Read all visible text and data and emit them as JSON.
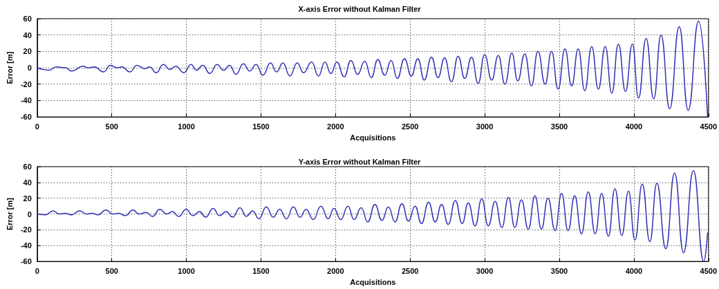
{
  "chart_data": [
    {
      "type": "line",
      "title": "X-axis Error without Kalman Filter",
      "xlabel": "Acquisitions",
      "ylabel": "Error [m]",
      "xlim": [
        0,
        4500
      ],
      "xticks": [
        0,
        500,
        1000,
        1500,
        2000,
        2500,
        3000,
        3500,
        4000,
        4500
      ],
      "ylim": [
        -60,
        60
      ],
      "yticks": [
        -60,
        -40,
        -20,
        0,
        20,
        40,
        60
      ],
      "grid": true,
      "marker": "none",
      "line_style": "solid",
      "series": [
        {
          "color": "#3232b4",
          "x": [
            0,
            77,
            130,
            192,
            230,
            310,
            338,
            384,
            445,
            491,
            537,
            568,
            622,
            668,
            722,
            753,
            799,
            845,
            891,
            929,
            983,
            1032,
            1067,
            1110,
            1157,
            1206,
            1249,
            1290,
            1333,
            1382,
            1425,
            1467,
            1513,
            1564,
            1605,
            1647,
            1694,
            1743,
            1785,
            1840,
            1886,
            1928,
            1969,
            2009,
            2058,
            2103,
            2148,
            2196,
            2240,
            2283,
            2330,
            2373,
            2414,
            2462,
            2508,
            2552,
            2595,
            2643,
            2687,
            2731,
            2777,
            2822,
            2866,
            2912,
            2956,
            2999,
            3047,
            3091,
            3136,
            3182,
            3221,
            3269,
            3313,
            3357,
            3405,
            3448,
            3492,
            3538,
            3583,
            3627,
            3671,
            3717,
            3762,
            3808,
            3852,
            3896,
            3944,
            3990,
            4031,
            4082,
            4133,
            4182,
            4240,
            4304,
            4364,
            4434,
            4494
          ],
          "values": [
            0,
            -3,
            1,
            0,
            -4,
            2,
            0,
            1,
            -5,
            3,
            0,
            1,
            -5,
            3,
            -1,
            1,
            -6,
            4,
            -2,
            2,
            -6,
            4,
            -3,
            3,
            -7,
            4,
            -3,
            3,
            -8,
            5,
            -4,
            4,
            -9,
            6,
            -5,
            6,
            -10,
            6,
            -6,
            7,
            -10,
            7,
            -7,
            7,
            -11,
            9,
            -8,
            8,
            -12,
            10,
            -9,
            9,
            -13,
            11,
            -10,
            11,
            -15,
            13,
            -12,
            12,
            -17,
            14,
            -13,
            13,
            -19,
            16,
            -15,
            15,
            -20,
            18,
            -16,
            17,
            -22,
            20,
            -20,
            20,
            -26,
            23,
            -22,
            23,
            -28,
            26,
            -26,
            26,
            -31,
            29,
            -29,
            29,
            -37,
            36,
            -38,
            40,
            -50,
            50,
            -52,
            57,
            -60
          ]
        }
      ]
    },
    {
      "type": "line",
      "title": "Y-axis Error without Kalman Filter",
      "xlabel": "Acquisitions",
      "ylabel": "Error [m]",
      "xlim": [
        0,
        4500
      ],
      "xticks": [
        0,
        500,
        1000,
        1500,
        2000,
        2500,
        3000,
        3500,
        4000,
        4500
      ],
      "ylim": [
        -60,
        60
      ],
      "yticks": [
        -60,
        -40,
        -20,
        0,
        20,
        40,
        60
      ],
      "grid": true,
      "marker": "none",
      "line_style": "solid",
      "series": [
        {
          "color": "#3232b4",
          "x": [
            0,
            54,
            108,
            146,
            184,
            230,
            284,
            330,
            369,
            407,
            461,
            507,
            545,
            591,
            642,
            684,
            730,
            773,
            822,
            868,
            906,
            949,
            998,
            1044,
            1088,
            1129,
            1180,
            1221,
            1267,
            1310,
            1359,
            1402,
            1444,
            1487,
            1536,
            1582,
            1625,
            1671,
            1717,
            1762,
            1802,
            1851,
            1902,
            1951,
            1989,
            2035,
            2083,
            2124,
            2172,
            2216,
            2264,
            2311,
            2354,
            2399,
            2445,
            2489,
            2533,
            2576,
            2624,
            2668,
            2711,
            2755,
            2803,
            2849,
            2890,
            2936,
            2980,
            3024,
            3070,
            3115,
            3159,
            3202,
            3246,
            3292,
            3337,
            3380,
            3424,
            3472,
            3515,
            3559,
            3603,
            3649,
            3694,
            3741,
            3784,
            3829,
            3873,
            3919,
            3964,
            4007,
            4056,
            4107,
            4154,
            4214,
            4273,
            4333,
            4399,
            4468,
            4494
          ],
          "values": [
            0,
            -1,
            4,
            0,
            1,
            -1,
            4,
            0,
            1,
            -1,
            5,
            0,
            1,
            -2,
            5,
            0,
            2,
            -3,
            6,
            0,
            3,
            -3,
            6,
            -2,
            3,
            -4,
            7,
            -2,
            3,
            -4,
            8,
            -3,
            4,
            -6,
            9,
            -4,
            6,
            -6,
            9,
            -4,
            6,
            -7,
            10,
            -6,
            7,
            -7,
            10,
            -7,
            8,
            -10,
            12,
            -8,
            9,
            -10,
            13,
            -9,
            10,
            -12,
            15,
            -10,
            12,
            -13,
            17,
            -12,
            14,
            -15,
            19,
            -15,
            16,
            -17,
            21,
            -17,
            18,
            -19,
            23,
            -19,
            20,
            -21,
            26,
            -21,
            23,
            -25,
            28,
            -25,
            26,
            -28,
            32,
            -27,
            29,
            -33,
            38,
            -35,
            39,
            -44,
            52,
            -49,
            55,
            -60,
            -24
          ]
        }
      ]
    }
  ]
}
